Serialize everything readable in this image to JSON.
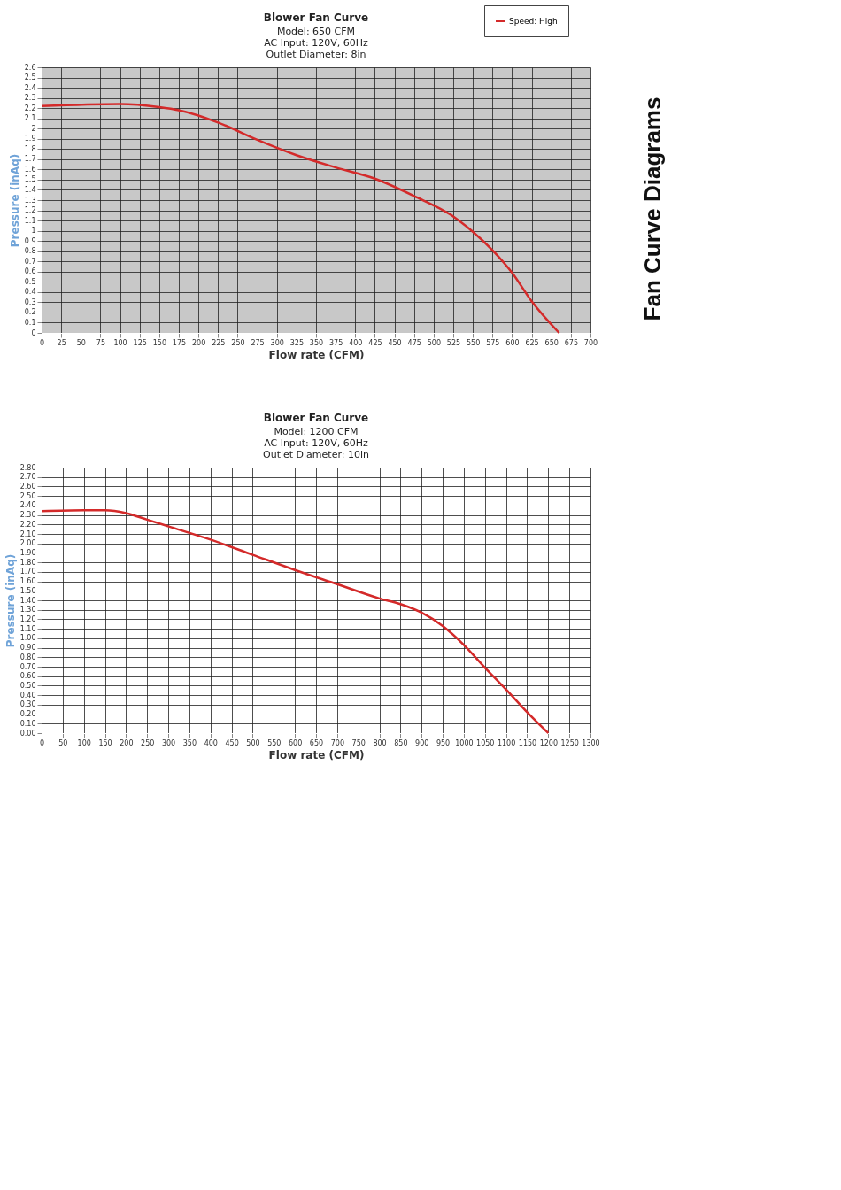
{
  "chart_data": [
    {
      "type": "line",
      "title": "Blower Fan Curve",
      "subtitle": [
        "Model: 650 CFM",
        "AC Input: 120V, 60Hz",
        "Outlet Diameter: 8in"
      ],
      "xlabel": "Flow rate (CFM)",
      "ylabel": "Pressure (inAq)",
      "annotations": [
        "Fan Curve Diagrams"
      ],
      "xlim": [
        0,
        700
      ],
      "xticks": [
        0,
        25,
        50,
        75,
        100,
        125,
        150,
        175,
        200,
        225,
        250,
        275,
        300,
        325,
        350,
        375,
        400,
        425,
        450,
        475,
        500,
        525,
        550,
        575,
        600,
        625,
        650,
        675,
        700
      ],
      "ylim": [
        0,
        2.6
      ],
      "yticks": [
        0,
        0.1,
        0.2,
        0.3,
        0.4,
        0.5,
        0.6,
        0.7,
        0.8,
        0.9,
        1,
        1.1,
        1.2,
        1.3,
        1.4,
        1.5,
        1.6,
        1.7,
        1.8,
        1.9,
        2,
        2.1,
        2.2,
        2.3,
        2.4,
        2.5,
        2.6
      ],
      "grid": true,
      "legend": "top right",
      "marker": "none",
      "line_style": "solid",
      "x": [
        0,
        100,
        150,
        175,
        225,
        275,
        325,
        375,
        425,
        475,
        525,
        550,
        575,
        600,
        625,
        660
      ],
      "series": [
        {
          "name": "Speed: High",
          "color": "#d42a2a",
          "values": [
            2.22,
            2.24,
            2.21,
            2.18,
            2.06,
            1.89,
            1.74,
            1.62,
            1.51,
            1.34,
            1.14,
            0.99,
            0.81,
            0.59,
            0.31,
            0
          ]
        }
      ]
    },
    {
      "type": "line",
      "title": "Blower Fan Curve",
      "subtitle": [
        "Model: 1200 CFM",
        "AC Input: 120V, 60Hz",
        "Outlet Diameter: 10in"
      ],
      "xlabel": "Flow rate (CFM)",
      "ylabel": "Pressure (inAq)",
      "xlim": [
        0,
        1300
      ],
      "xticks": [
        0,
        50,
        100,
        150,
        200,
        250,
        300,
        350,
        400,
        450,
        500,
        550,
        600,
        650,
        700,
        750,
        800,
        850,
        900,
        950,
        1000,
        1050,
        1100,
        1150,
        1200,
        1250,
        1300
      ],
      "ylim": [
        0,
        2.8
      ],
      "yticks": [
        {
          "value": 0,
          "label": "0.00"
        },
        {
          "value": 0.1,
          "label": "0.10"
        },
        {
          "value": 0.2,
          "label": "0.20"
        },
        {
          "value": 0.3,
          "label": "0.30"
        },
        {
          "value": 0.4,
          "label": "0.40"
        },
        {
          "value": 0.5,
          "label": "0.50"
        },
        {
          "value": 0.6,
          "label": "0.60"
        },
        {
          "value": 0.7,
          "label": "0.70"
        },
        {
          "value": 0.8,
          "label": "0.80"
        },
        {
          "value": 0.9,
          "label": "0.90"
        },
        {
          "value": 1,
          "label": "1.00"
        },
        {
          "value": 1.1,
          "label": "1.10"
        },
        {
          "value": 1.2,
          "label": "1.20"
        },
        {
          "value": 1.3,
          "label": "1.30"
        },
        {
          "value": 1.4,
          "label": "1.40"
        },
        {
          "value": 1.5,
          "label": "1.50"
        },
        {
          "value": 1.6,
          "label": "1.60"
        },
        {
          "value": 1.7,
          "label": "1.70"
        },
        {
          "value": 1.8,
          "label": "1.80"
        },
        {
          "value": 1.9,
          "label": "1.90"
        },
        {
          "value": 2,
          "label": "2.00"
        },
        {
          "value": 2.1,
          "label": "2.10"
        },
        {
          "value": 2.2,
          "label": "2.20"
        },
        {
          "value": 2.3,
          "label": "2.30"
        },
        {
          "value": 2.4,
          "label": "2.40"
        },
        {
          "value": 2.5,
          "label": "2.50"
        },
        {
          "value": 2.6,
          "label": "2.60"
        },
        {
          "value": 2.7,
          "label": "2.70"
        },
        {
          "value": 2.8,
          "label": "2.80"
        }
      ],
      "grid": true,
      "marker": "none",
      "line_style": "solid",
      "x": [
        0,
        100,
        150,
        200,
        250,
        300,
        400,
        500,
        600,
        700,
        800,
        850,
        900,
        950,
        1000,
        1050,
        1100,
        1150,
        1200
      ],
      "series": [
        {
          "color": "#d42a2a",
          "values": [
            2.34,
            2.35,
            2.35,
            2.32,
            2.25,
            2.18,
            2.04,
            1.88,
            1.72,
            1.57,
            1.42,
            1.36,
            1.27,
            1.13,
            0.93,
            0.69,
            0.46,
            0.22,
            0
          ]
        }
      ]
    }
  ]
}
